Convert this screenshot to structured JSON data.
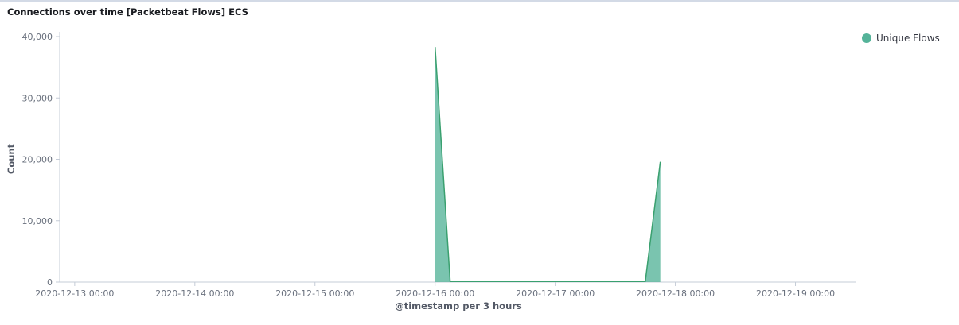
{
  "panel": {
    "title": "Connections over time [Packetbeat Flows] ECS"
  },
  "legend": {
    "items": [
      {
        "label": "Unique Flows",
        "color": "#54b399"
      }
    ]
  },
  "colors": {
    "series_fill": "#54b399",
    "series_stroke": "#3aa06f",
    "axis_line": "#c5ccd7",
    "tick_text": "#69707d",
    "title_border": "#d3dae6"
  },
  "chart_data": {
    "type": "area",
    "title": "Connections over time [Packetbeat Flows] ECS",
    "xlabel": "@timestamp per 3 hours",
    "ylabel": "Count",
    "ylim": [
      0,
      40000
    ],
    "xlim": [
      "2020-12-12 21:00",
      "2020-12-19 12:00"
    ],
    "y_ticks": [
      {
        "value": 0,
        "label": "0"
      },
      {
        "value": 10000,
        "label": "10,000"
      },
      {
        "value": 20000,
        "label": "20,000"
      },
      {
        "value": 30000,
        "label": "30,000"
      },
      {
        "value": 40000,
        "label": "40,000"
      }
    ],
    "x_ticks": [
      {
        "value": "2020-12-13 00:00",
        "label": "2020-12-13 00:00"
      },
      {
        "value": "2020-12-14 00:00",
        "label": "2020-12-14 00:00"
      },
      {
        "value": "2020-12-15 00:00",
        "label": "2020-12-15 00:00"
      },
      {
        "value": "2020-12-16 00:00",
        "label": "2020-12-16 00:00"
      },
      {
        "value": "2020-12-17 00:00",
        "label": "2020-12-17 00:00"
      },
      {
        "value": "2020-12-18 00:00",
        "label": "2020-12-18 00:00"
      },
      {
        "value": "2020-12-19 00:00",
        "label": "2020-12-19 00:00"
      }
    ],
    "grid": false,
    "legend_position": "top-right",
    "series": [
      {
        "name": "Unique Flows",
        "points": [
          {
            "x": "2020-12-16 00:00",
            "y": 38300
          },
          {
            "x": "2020-12-16 03:00",
            "y": 100
          },
          {
            "x": "2020-12-16 06:00",
            "y": 100
          },
          {
            "x": "2020-12-16 09:00",
            "y": 100
          },
          {
            "x": "2020-12-16 12:00",
            "y": 100
          },
          {
            "x": "2020-12-16 15:00",
            "y": 100
          },
          {
            "x": "2020-12-16 18:00",
            "y": 100
          },
          {
            "x": "2020-12-16 21:00",
            "y": 100
          },
          {
            "x": "2020-12-17 00:00",
            "y": 100
          },
          {
            "x": "2020-12-17 03:00",
            "y": 100
          },
          {
            "x": "2020-12-17 06:00",
            "y": 100
          },
          {
            "x": "2020-12-17 09:00",
            "y": 100
          },
          {
            "x": "2020-12-17 12:00",
            "y": 100
          },
          {
            "x": "2020-12-17 15:00",
            "y": 100
          },
          {
            "x": "2020-12-17 18:00",
            "y": 100
          },
          {
            "x": "2020-12-17 21:00",
            "y": 19600
          }
        ]
      }
    ]
  }
}
